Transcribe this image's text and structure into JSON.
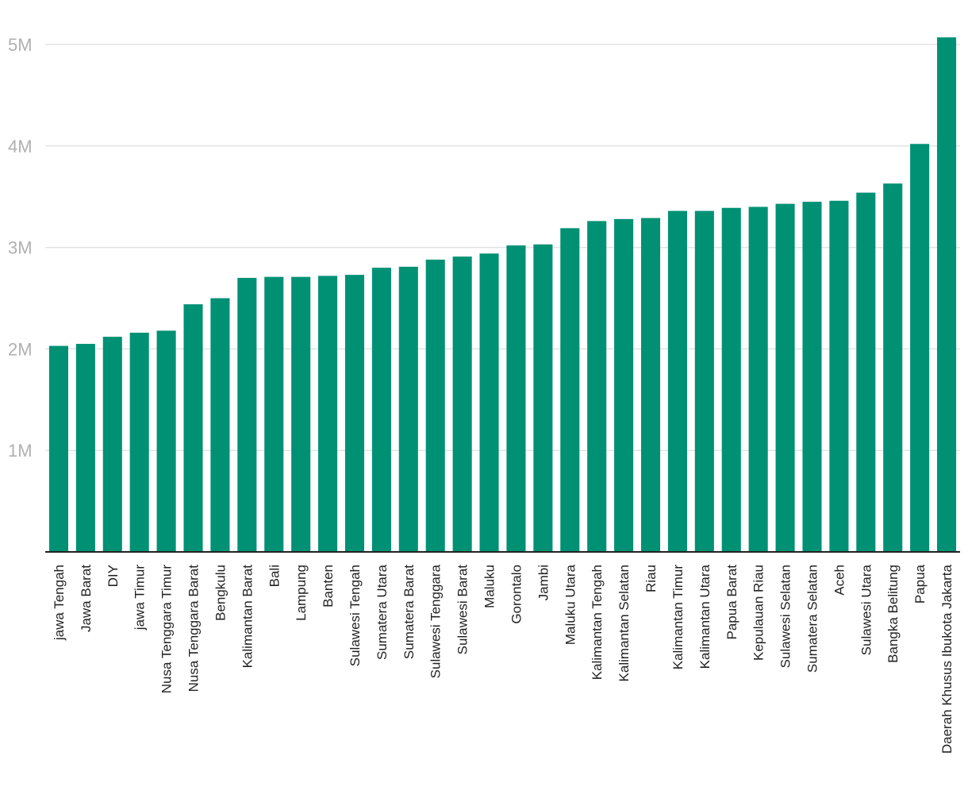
{
  "chart_data": {
    "type": "bar",
    "title": "",
    "xlabel": "",
    "ylabel": "",
    "bar_color": "#009175",
    "grid": true,
    "ylim": [
      0,
      5000000
    ],
    "yticks": [
      {
        "value": 1000000,
        "label": "1M"
      },
      {
        "value": 2000000,
        "label": "2M"
      },
      {
        "value": 3000000,
        "label": "3M"
      },
      {
        "value": 4000000,
        "label": "4M"
      },
      {
        "value": 5000000,
        "label": "5M"
      }
    ],
    "categories": [
      "jawa Tengah",
      "Jawa Barat",
      "DIY",
      "jawa Timur",
      "Nusa Tenggara Timur",
      "Nusa Tenggara Barat",
      "Bengkulu",
      "Kalimantan Barat",
      "Bali",
      "Lampung",
      "Banten",
      "Sulawesi Tengah",
      "Sumatera Utara",
      "Sumatera Barat",
      "Sulawesi Tenggara",
      "Sulawesi Barat",
      "Maluku",
      "Gorontalo",
      "Jambi",
      "Maluku Utara",
      "Kalimantan Tengah",
      "Kalimantan Selatan",
      "Riau",
      "Kalimantan Timur",
      "Kalimantan Utara",
      "Papua Barat",
      "Kepulauan Riau",
      "Sulawesi Selatan",
      "Sumatera Selatan",
      "Aceh",
      "Sulawesi Utara",
      "Bangka Belitung",
      "Papua",
      "Daerah Khusus Ibukota Jakarta"
    ],
    "values": [
      2030000,
      2050000,
      2120000,
      2160000,
      2180000,
      2440000,
      2500000,
      2700000,
      2710000,
      2710000,
      2720000,
      2730000,
      2800000,
      2810000,
      2880000,
      2910000,
      2940000,
      3020000,
      3030000,
      3190000,
      3260000,
      3280000,
      3290000,
      3360000,
      3360000,
      3390000,
      3400000,
      3430000,
      3450000,
      3460000,
      3540000,
      3630000,
      4020000,
      5070000
    ]
  }
}
